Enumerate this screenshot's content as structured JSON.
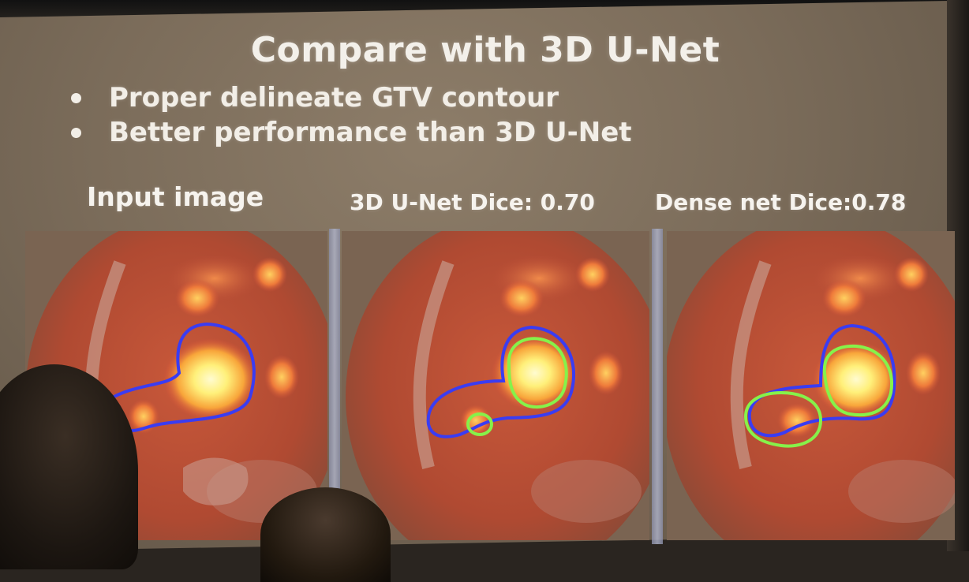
{
  "slide": {
    "title": "Compare with 3D U-Net",
    "bullets": [
      "Proper delineate GTV contour",
      "Better performance than 3D U-Net"
    ]
  },
  "panels": [
    {
      "label": "Input image"
    },
    {
      "label": "3D U-Net Dice: 0.70"
    },
    {
      "label": "Dense net Dice:0.78"
    }
  ],
  "colors": {
    "ground_truth_contour": "#3a3cf2",
    "prediction_contour": "#86f24a",
    "pet_hotspot": "#fff07a"
  }
}
